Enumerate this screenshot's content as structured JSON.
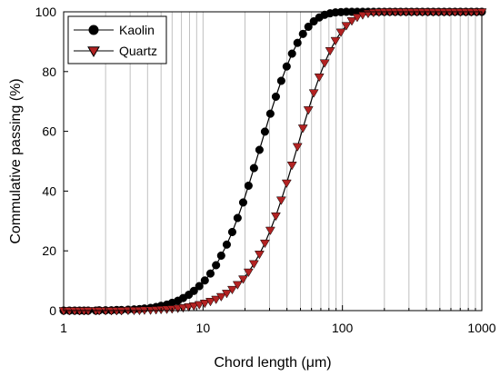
{
  "chart_data": {
    "type": "scatter",
    "title": "",
    "xlabel": "Chord length (μm)",
    "ylabel": "Commulative passing (%)",
    "xscale": "log",
    "xlim": [
      1,
      1000
    ],
    "ylim": [
      0,
      100
    ],
    "xticks": [
      "1",
      "10",
      "100",
      "1000"
    ],
    "yticks": [
      "0",
      "20",
      "40",
      "60",
      "80",
      "100"
    ],
    "grid": "vertical minor gridlines on log x-axis",
    "legend_position": "top-left",
    "colors": {
      "kaolin_marker": "#000000",
      "quartz_marker": "#b22222",
      "line": "#000000",
      "grid": "#c0c0c0"
    },
    "series": [
      {
        "name": "Kaolin",
        "marker": "circle",
        "x": [
          1,
          1.1,
          1.2,
          1.3,
          1.4,
          1.5,
          1.7,
          1.8,
          2,
          2.2,
          2.4,
          2.6,
          2.9,
          3.2,
          3.5,
          3.8,
          4.2,
          4.6,
          5,
          5.5,
          6,
          6.6,
          7.2,
          7.9,
          8.6,
          9.4,
          10.3,
          11.3,
          12.4,
          13.5,
          14.8,
          16.2,
          17.7,
          19.4,
          21.2,
          23.2,
          25.4,
          27.8,
          30.4,
          33.3,
          36.4,
          39.8,
          43.5,
          47.6,
          52.1,
          57,
          62.3,
          68.2,
          74.6,
          81.6,
          89.2,
          97.6,
          106.7,
          116.8,
          127.7,
          139.7,
          152.8,
          167.2,
          182.9,
          200,
          218.8,
          239.3,
          261.8,
          286.4,
          313.2,
          342.6,
          374.8,
          410,
          448.5,
          490.6,
          536.6,
          587,
          642.1,
          702.4,
          768.3,
          840.4,
          919.3,
          1000
        ],
        "y": [
          0,
          0,
          0,
          0,
          0,
          0,
          0,
          0.1,
          0.1,
          0.1,
          0.2,
          0.2,
          0.3,
          0.4,
          0.5,
          0.7,
          0.9,
          1.2,
          1.6,
          2,
          2.6,
          3.3,
          4.2,
          5.3,
          6.6,
          8.2,
          10.1,
          12.4,
          15.2,
          18.4,
          22.1,
          26.3,
          31,
          36.2,
          41.8,
          47.7,
          53.8,
          59.9,
          65.9,
          71.6,
          76.9,
          81.7,
          86,
          89.6,
          92.6,
          95,
          96.8,
          98.1,
          99,
          99.5,
          99.8,
          99.9,
          100,
          100,
          100,
          100,
          100,
          100,
          100,
          100,
          100,
          100,
          100,
          100,
          100,
          100,
          100,
          100,
          100,
          100,
          100,
          100,
          100,
          100,
          100,
          100,
          100,
          100
        ]
      },
      {
        "name": "Quartz",
        "marker": "triangle-down",
        "x": [
          1,
          1.1,
          1.2,
          1.3,
          1.4,
          1.5,
          1.7,
          1.8,
          2,
          2.2,
          2.4,
          2.6,
          2.9,
          3.2,
          3.5,
          3.8,
          4.2,
          4.6,
          5,
          5.5,
          6,
          6.6,
          7.2,
          7.9,
          8.6,
          9.4,
          10.3,
          11.3,
          12.4,
          13.5,
          14.8,
          16.2,
          17.7,
          19.4,
          21.2,
          23.2,
          25.4,
          27.8,
          30.4,
          33.3,
          36.4,
          39.8,
          43.5,
          47.6,
          52.1,
          57,
          62.3,
          68.2,
          74.6,
          81.6,
          89.2,
          97.6,
          106.7,
          116.8,
          127.7,
          139.7,
          152.8,
          167.2,
          182.9,
          200,
          218.8,
          239.3,
          261.8,
          286.4,
          313.2,
          342.6,
          374.8,
          410,
          448.5,
          490.6,
          536.6,
          587,
          642.1,
          702.4,
          768.3,
          840.4,
          919.3,
          1000
        ],
        "y": [
          0,
          0,
          0,
          0,
          0,
          0,
          0,
          0,
          0,
          0,
          0,
          0,
          0.1,
          0.1,
          0.1,
          0.2,
          0.2,
          0.3,
          0.4,
          0.5,
          0.6,
          0.8,
          1,
          1.3,
          1.6,
          2,
          2.5,
          3.1,
          3.8,
          4.7,
          5.8,
          7.1,
          8.7,
          10.6,
          12.9,
          15.7,
          18.9,
          22.6,
          26.9,
          31.7,
          37,
          42.7,
          48.7,
          54.9,
          61.1,
          67.2,
          72.9,
          78.2,
          82.9,
          87,
          90.4,
          93.2,
          95.4,
          97,
          98.2,
          99,
          99.5,
          99.8,
          99.9,
          100,
          100,
          100,
          100,
          100,
          100,
          100,
          100,
          100,
          100,
          100,
          100,
          100,
          100,
          100,
          100,
          100,
          100,
          100
        ]
      }
    ]
  }
}
